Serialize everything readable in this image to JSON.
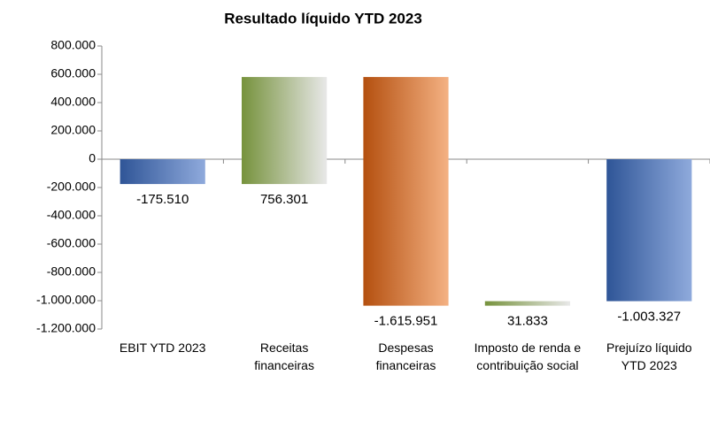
{
  "chart_data": {
    "type": "waterfall",
    "title": "Resultado líquido YTD 2023",
    "categories": [
      "EBIT YTD 2023",
      "Receitas financeiras",
      "Despesas financeiras",
      "Imposto de renda e contribuição social",
      "Prejuízo líquido YTD 2023"
    ],
    "values": [
      -175510,
      756301,
      -1615951,
      31833,
      -1003327
    ],
    "value_labels": [
      "-175.510",
      "756.301",
      "-1.615.951",
      "31.833",
      "-1.003.327"
    ],
    "colors": [
      [
        "#2f5597",
        "#8faadc"
      ],
      [
        "#76923c",
        "#e8e8e8"
      ],
      [
        "#b4500f",
        "#f4b183"
      ],
      [
        "#76923c",
        "#e8e8e8"
      ],
      [
        "#2f5597",
        "#8faadc"
      ]
    ],
    "ylim": [
      -1200000,
      800000
    ],
    "yticks": [
      {
        "value": -1200000,
        "label": "-1.200.000"
      },
      {
        "value": -1000000,
        "label": "-1.000.000"
      },
      {
        "value": -800000,
        "label": "-800.000"
      },
      {
        "value": -600000,
        "label": "-600.000"
      },
      {
        "value": -400000,
        "label": "-400.000"
      },
      {
        "value": -200000,
        "label": "-200.000"
      },
      0,
      {
        "value": 200000,
        "label": "200.000"
      },
      {
        "value": 400000,
        "label": "400.000"
      },
      {
        "value": 600000,
        "label": "600.000"
      },
      {
        "value": 800000,
        "label": "800.000"
      }
    ]
  }
}
